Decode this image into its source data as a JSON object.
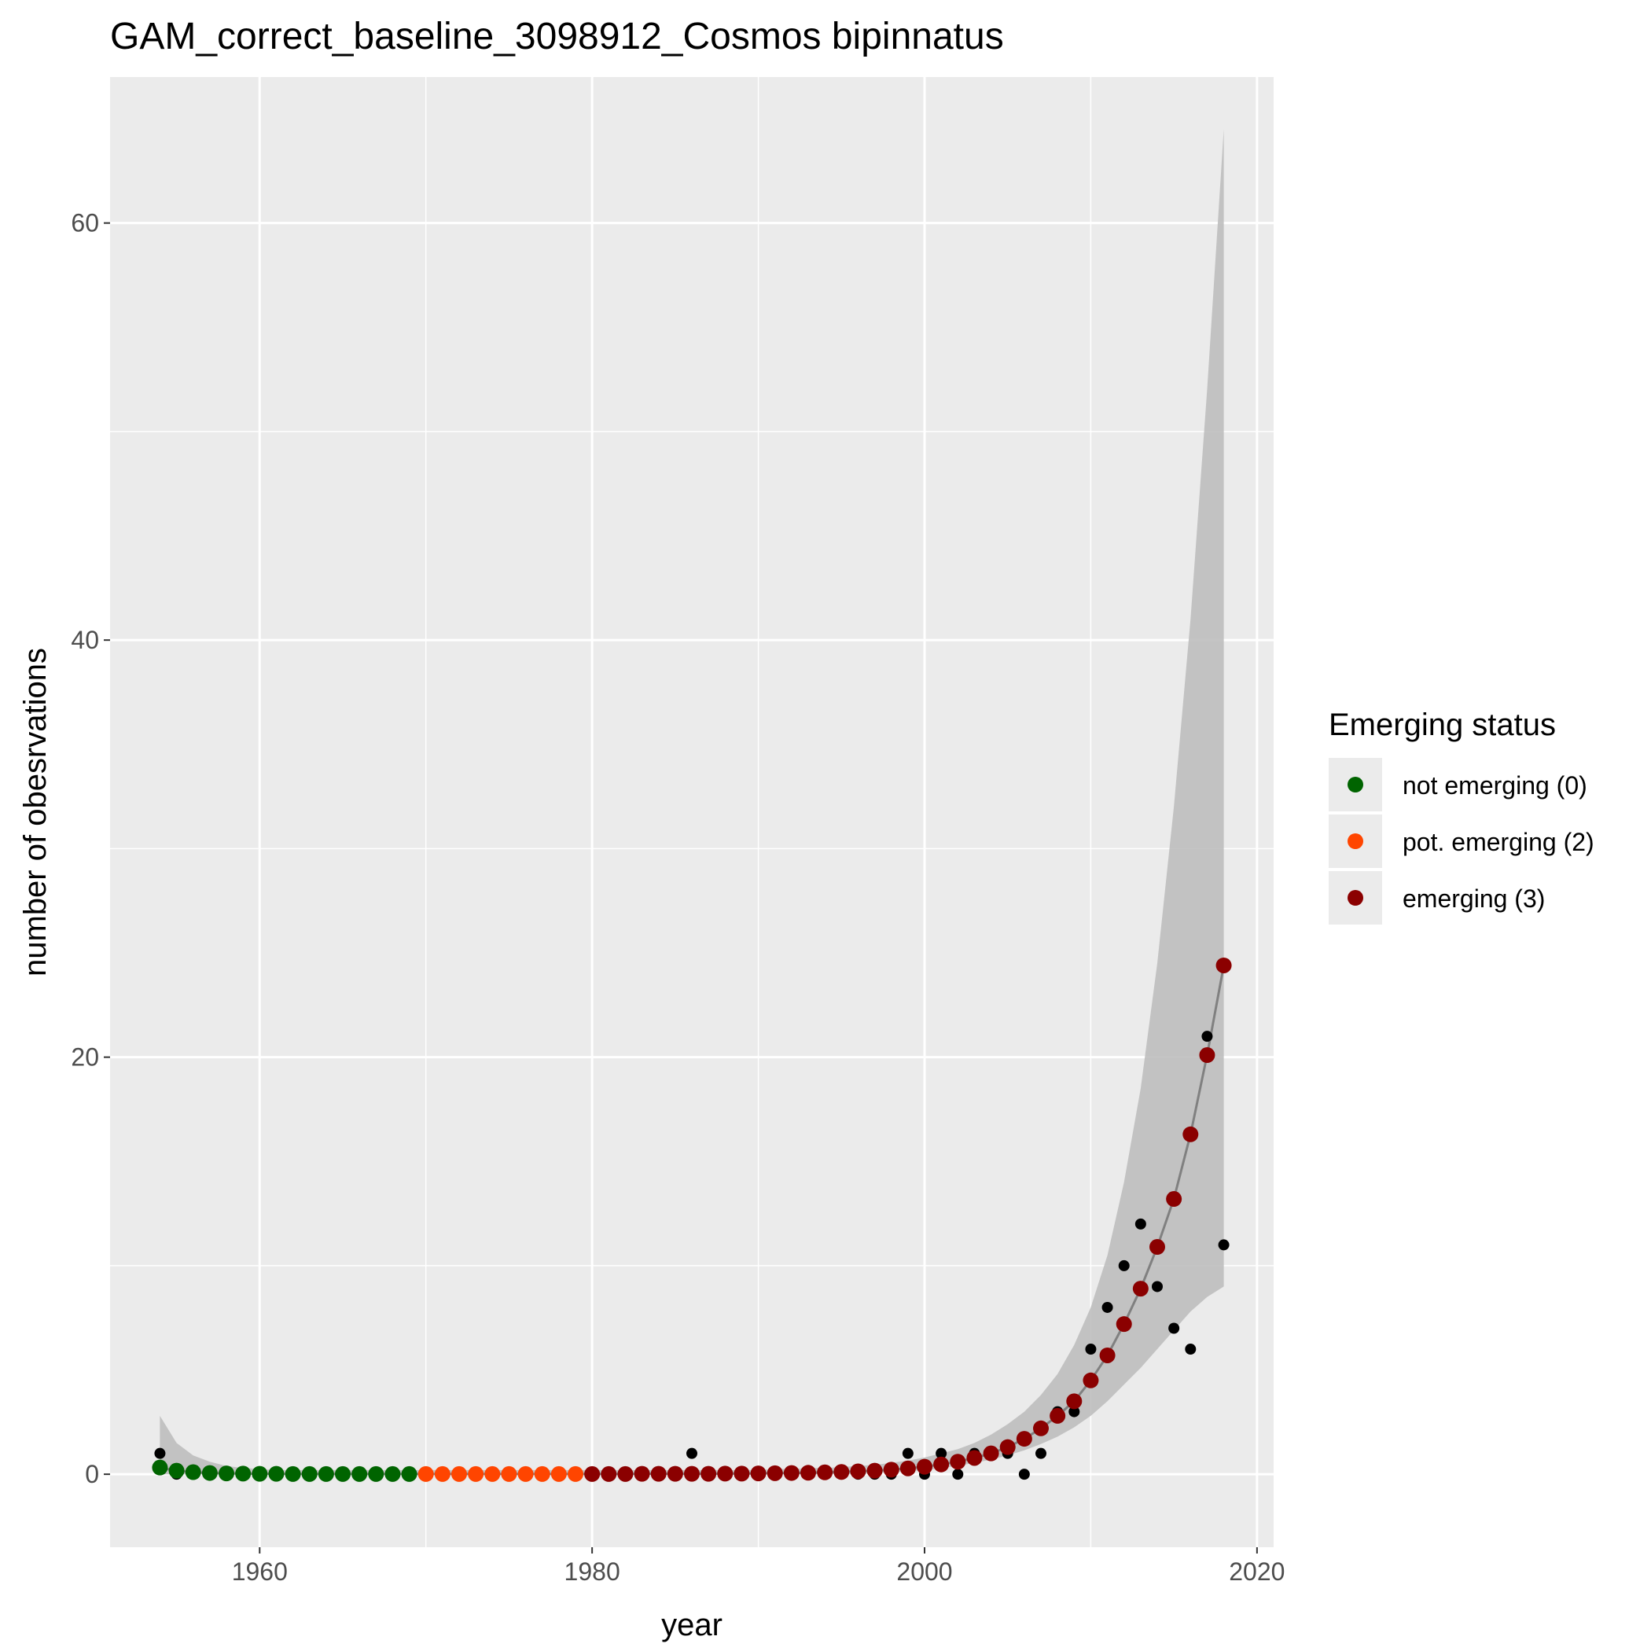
{
  "chart_data": {
    "type": "scatter",
    "title": "GAM_correct_baseline_3098912_Cosmos bipinnatus",
    "xlabel": "year",
    "ylabel": "number of obesrvations",
    "xlim": [
      1951,
      2021
    ],
    "ylim": [
      -3.5,
      67
    ],
    "xticks": [
      1960,
      1980,
      2000,
      2020
    ],
    "yticks": [
      0,
      20,
      40,
      60
    ],
    "minor_xticks": [
      1970,
      1990,
      2010
    ],
    "minor_yticks": [
      10,
      30,
      50
    ],
    "grid": true,
    "legend": {
      "title": "Emerging status",
      "position": "right",
      "entries": [
        {
          "label": "not emerging (0)",
          "color": "#006400"
        },
        {
          "label": "pot. emerging (2)",
          "color": "#FF4500"
        },
        {
          "label": "emerging (3)",
          "color": "#8B0000"
        }
      ]
    },
    "colors": {
      "panel": "#EBEBEB",
      "grid": "#FFFFFF",
      "ribbon": "#BEBEBE",
      "fit_line": "#808080",
      "observed": "#000000",
      "not_emerging": "#006400",
      "pot_emerging": "#FF4500",
      "emerging": "#8B0000"
    },
    "observed": {
      "x": [
        1954,
        1955,
        1956,
        1957,
        1958,
        1959,
        1960,
        1961,
        1962,
        1963,
        1964,
        1965,
        1966,
        1967,
        1968,
        1969,
        1970,
        1971,
        1972,
        1973,
        1974,
        1975,
        1976,
        1977,
        1978,
        1979,
        1980,
        1981,
        1982,
        1983,
        1984,
        1985,
        1986,
        1987,
        1988,
        1989,
        1990,
        1991,
        1992,
        1993,
        1994,
        1995,
        1996,
        1997,
        1998,
        1999,
        2000,
        2001,
        2002,
        2003,
        2004,
        2005,
        2006,
        2007,
        2008,
        2009,
        2010,
        2011,
        2012,
        2013,
        2014,
        2015,
        2016,
        2017,
        2018
      ],
      "y": [
        1,
        0,
        0,
        0,
        0,
        0,
        0,
        0,
        0,
        0,
        0,
        0,
        0,
        0,
        0,
        0,
        0,
        0,
        0,
        0,
        0,
        0,
        0,
        0,
        0,
        0,
        0,
        0,
        0,
        0,
        0,
        0,
        1,
        0,
        0,
        0,
        0,
        0,
        0,
        0,
        0,
        0,
        0,
        0,
        0,
        1,
        0,
        1,
        0,
        1,
        1,
        1,
        0,
        1,
        3,
        3,
        6,
        8,
        10,
        12,
        9,
        7,
        6,
        21,
        11
      ]
    },
    "fitted": {
      "x": [
        1954,
        1955,
        1956,
        1957,
        1958,
        1959,
        1960,
        1961,
        1962,
        1963,
        1964,
        1965,
        1966,
        1967,
        1968,
        1969,
        1970,
        1971,
        1972,
        1973,
        1974,
        1975,
        1976,
        1977,
        1978,
        1979,
        1980,
        1981,
        1982,
        1983,
        1984,
        1985,
        1986,
        1987,
        1988,
        1989,
        1990,
        1991,
        1992,
        1993,
        1994,
        1995,
        1996,
        1997,
        1998,
        1999,
        2000,
        2001,
        2002,
        2003,
        2004,
        2005,
        2006,
        2007,
        2008,
        2009,
        2010,
        2011,
        2012,
        2013,
        2014,
        2015,
        2016,
        2017,
        2018
      ],
      "y": [
        0.32,
        0.17,
        0.1,
        0.06,
        0.04,
        0.03,
        0.02,
        0.02,
        0.01,
        0.01,
        0.01,
        0.01,
        0.01,
        0.01,
        0.01,
        0.01,
        0.01,
        0.01,
        0.01,
        0.01,
        0.01,
        0.01,
        0.01,
        0.01,
        0.01,
        0.01,
        0.01,
        0.01,
        0.01,
        0.02,
        0.02,
        0.02,
        0.02,
        0.02,
        0.03,
        0.03,
        0.04,
        0.05,
        0.06,
        0.07,
        0.09,
        0.11,
        0.14,
        0.17,
        0.22,
        0.28,
        0.36,
        0.47,
        0.6,
        0.78,
        1.0,
        1.3,
        1.7,
        2.2,
        2.8,
        3.5,
        4.5,
        5.7,
        7.2,
        8.9,
        10.9,
        13.2,
        16.3,
        20.1,
        24.4
      ],
      "lower": [
        0.0,
        0.0,
        0.0,
        0.0,
        0.0,
        0.0,
        0.0,
        0.0,
        0.0,
        0.0,
        0.0,
        0.0,
        0.0,
        0.0,
        0.0,
        0.0,
        0.0,
        0.0,
        0.0,
        0.0,
        0.0,
        0.0,
        0.0,
        0.0,
        0.0,
        0.0,
        0.0,
        0.0,
        0.0,
        0.0,
        0.0,
        0.0,
        0.0,
        0.0,
        0.0,
        0.0,
        0.0,
        0.0,
        0.0,
        0.0,
        0.0,
        0.0,
        0.0,
        0.05,
        0.1,
        0.15,
        0.2,
        0.3,
        0.4,
        0.55,
        0.7,
        0.9,
        1.15,
        1.45,
        1.8,
        2.25,
        2.8,
        3.5,
        4.3,
        5.1,
        6.0,
        6.9,
        7.8,
        8.5,
        9.0
      ],
      "upper": [
        2.8,
        1.5,
        0.9,
        0.6,
        0.4,
        0.3,
        0.25,
        0.2,
        0.2,
        0.2,
        0.2,
        0.2,
        0.2,
        0.2,
        0.2,
        0.2,
        0.2,
        0.2,
        0.2,
        0.2,
        0.2,
        0.2,
        0.2,
        0.2,
        0.2,
        0.2,
        0.2,
        0.2,
        0.2,
        0.2,
        0.2,
        0.2,
        0.2,
        0.2,
        0.2,
        0.2,
        0.2,
        0.25,
        0.25,
        0.3,
        0.3,
        0.35,
        0.4,
        0.45,
        0.55,
        0.65,
        0.8,
        1.0,
        1.2,
        1.5,
        1.9,
        2.4,
        3.0,
        3.8,
        4.8,
        6.2,
        8.0,
        10.5,
        14.0,
        18.5,
        24.5,
        32.0,
        41.0,
        52.0,
        64.5
      ],
      "status": [
        0,
        0,
        0,
        0,
        0,
        0,
        0,
        0,
        0,
        0,
        0,
        0,
        0,
        0,
        0,
        0,
        2,
        2,
        2,
        2,
        2,
        2,
        2,
        2,
        2,
        2,
        3,
        3,
        3,
        3,
        3,
        3,
        3,
        3,
        3,
        3,
        3,
        3,
        3,
        3,
        3,
        3,
        3,
        3,
        3,
        3,
        3,
        3,
        3,
        3,
        3,
        3,
        3,
        3,
        3,
        3,
        3,
        3,
        3,
        3,
        3,
        3,
        3,
        3,
        3
      ]
    }
  }
}
